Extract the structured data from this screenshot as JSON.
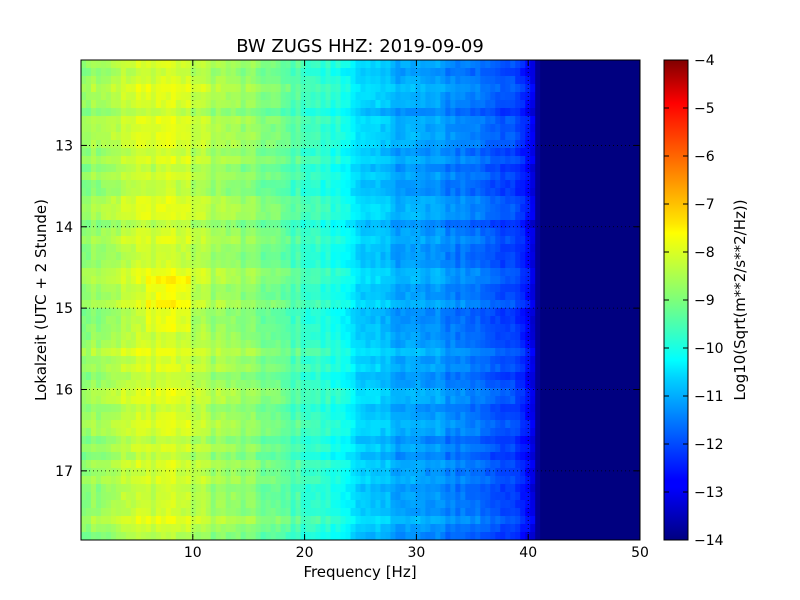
{
  "chart_data": {
    "type": "heatmap",
    "title": "BW ZUGS HHZ: 2019-09-09",
    "xlabel": "Frequency [Hz]",
    "ylabel": "Lokalzeit (UTC + 2 Stunde)",
    "xlim": [
      0,
      50
    ],
    "ylim": [
      11.95,
      17.85
    ],
    "y_inverted": true,
    "grid": true,
    "x_ticks": [
      10,
      20,
      30,
      40,
      50
    ],
    "y_ticks": [
      13,
      14,
      15,
      16,
      17
    ],
    "colormap": "jet",
    "colorbar": {
      "label": "Log10(Sqrt(m**2/s**2/Hz))",
      "range": [
        -14,
        -4
      ],
      "ticks": [
        -4,
        -5,
        -6,
        -7,
        -8,
        -9,
        -10,
        -11,
        -12,
        -13,
        -14
      ]
    },
    "frequency_profile": {
      "frequency_hz": [
        0,
        2,
        5,
        8,
        10,
        13,
        16,
        20,
        22,
        24.5,
        25,
        28,
        30,
        33,
        36,
        38,
        39.5,
        40.5,
        41,
        45,
        50
      ],
      "log10_amplitude": [
        -8.8,
        -8.6,
        -8.3,
        -8.1,
        -8.4,
        -8.7,
        -9.0,
        -9.6,
        -9.9,
        -10.3,
        -10.8,
        -11.0,
        -11.2,
        -11.4,
        -11.7,
        -12.0,
        -12.4,
        -13.2,
        -14,
        -14,
        -14
      ]
    }
  }
}
